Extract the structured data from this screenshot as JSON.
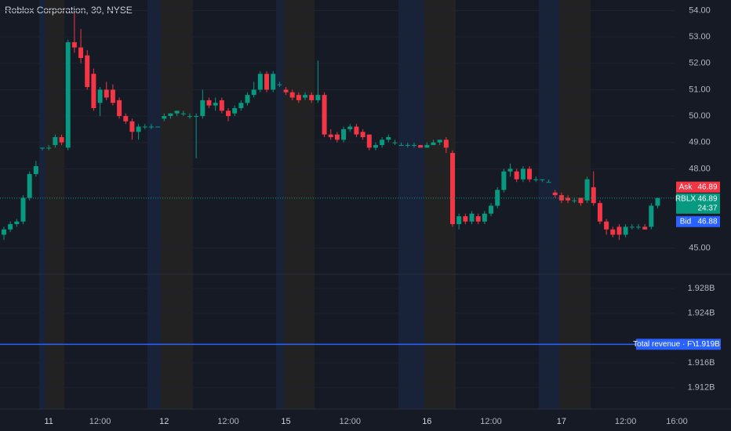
{
  "chart_data": {
    "type": "candlestick",
    "title": "Roblox Corporation, 30, NYSE",
    "up_color": "#089981",
    "down_color": "#f23645",
    "categories": [
      null,
      null,
      null,
      null,
      null,
      null,
      null,
      "11",
      null,
      null,
      null,
      null,
      null,
      null,
      null,
      "12:00",
      null,
      null,
      null,
      null,
      null,
      null,
      null,
      null,
      null,
      "12",
      null,
      null,
      null,
      null,
      null,
      null,
      null,
      null,
      null,
      "12:00",
      null,
      null,
      null,
      null,
      null,
      null,
      null,
      null,
      "15",
      null,
      null,
      null,
      null,
      null,
      null,
      null,
      null,
      null,
      "12:00",
      null,
      null,
      null,
      null,
      null,
      null,
      null,
      null,
      null,
      null,
      null,
      "16",
      null,
      null,
      null,
      null,
      null,
      null,
      null,
      null,
      null,
      "12:00",
      null,
      null,
      null,
      null,
      null,
      null,
      null,
      null,
      null,
      null,
      "17",
      null,
      null,
      null,
      null,
      null,
      null,
      null,
      null,
      null,
      "12:00",
      null,
      null,
      null,
      null,
      null,
      null,
      null,
      "16:00"
    ],
    "values": [
      [
        45.5,
        45.8,
        45.3,
        45.7
      ],
      [
        45.7,
        46.0,
        45.6,
        45.9
      ],
      [
        45.9,
        46.1,
        45.8,
        46.0
      ],
      [
        46.0,
        47.0,
        45.9,
        46.9
      ],
      [
        46.9,
        47.9,
        46.8,
        47.8
      ],
      [
        47.8,
        48.3,
        47.7,
        48.1
      ],
      [
        48.8,
        48.8,
        48.7,
        48.8
      ],
      [
        48.8,
        48.9,
        48.7,
        48.8
      ],
      [
        48.9,
        49.3,
        48.8,
        49.2
      ],
      [
        49.2,
        49.3,
        48.9,
        49.0
      ],
      [
        48.8,
        52.9,
        48.7,
        52.8
      ],
      [
        52.8,
        53.9,
        52.4,
        52.6
      ],
      [
        52.6,
        53.3,
        52.0,
        52.2
      ],
      [
        52.3,
        52.5,
        51.0,
        51.1
      ],
      [
        51.6,
        51.8,
        50.2,
        50.3
      ],
      [
        50.5,
        51.1,
        50.0,
        51.0
      ],
      [
        51.0,
        51.3,
        50.6,
        50.7
      ],
      [
        51.0,
        51.2,
        50.4,
        50.5
      ],
      [
        50.6,
        50.7,
        49.9,
        50.0
      ],
      [
        50.0,
        50.1,
        49.7,
        49.8
      ],
      [
        49.8,
        49.9,
        49.1,
        49.4
      ],
      [
        49.4,
        49.7,
        49.1,
        49.6
      ],
      [
        49.6,
        49.7,
        49.5,
        49.6
      ],
      [
        49.6,
        49.7,
        49.5,
        49.6
      ],
      [
        49.6,
        49.6,
        49.6,
        49.6
      ],
      [
        49.9,
        50.1,
        49.8,
        50.0
      ],
      [
        50.0,
        50.1,
        49.9,
        50.1
      ],
      [
        50.1,
        50.2,
        50.0,
        50.2
      ],
      [
        50.1,
        50.2,
        50.0,
        50.1
      ],
      [
        50.0,
        50.1,
        49.9,
        50.0
      ],
      [
        50.0,
        50.1,
        48.4,
        50.0
      ],
      [
        50.0,
        51.0,
        49.9,
        50.6
      ],
      [
        50.6,
        50.7,
        50.3,
        50.4
      ],
      [
        50.4,
        50.7,
        50.2,
        50.5
      ],
      [
        50.6,
        50.7,
        50.1,
        50.2
      ],
      [
        50.2,
        50.3,
        49.8,
        50.0
      ],
      [
        50.1,
        50.4,
        50.0,
        50.3
      ],
      [
        50.3,
        50.6,
        50.2,
        50.5
      ],
      [
        50.5,
        50.9,
        50.4,
        50.8
      ],
      [
        50.8,
        51.3,
        50.7,
        51.0
      ],
      [
        51.0,
        51.7,
        50.9,
        51.6
      ],
      [
        51.6,
        51.7,
        50.9,
        51.0
      ],
      [
        51.0,
        51.7,
        50.9,
        51.6
      ],
      [
        51.2,
        51.3,
        51.1,
        51.2
      ],
      [
        51.0,
        51.1,
        50.8,
        50.9
      ],
      [
        50.9,
        51.0,
        50.6,
        50.7
      ],
      [
        50.8,
        50.9,
        50.5,
        50.6
      ],
      [
        50.7,
        50.9,
        50.6,
        50.8
      ],
      [
        50.8,
        50.9,
        50.5,
        50.6
      ],
      [
        50.6,
        52.1,
        50.5,
        50.8
      ],
      [
        50.8,
        50.9,
        49.2,
        49.3
      ],
      [
        49.3,
        49.5,
        49.1,
        49.2
      ],
      [
        49.3,
        49.4,
        49.0,
        49.1
      ],
      [
        49.1,
        49.6,
        49.0,
        49.5
      ],
      [
        49.5,
        49.7,
        49.4,
        49.6
      ],
      [
        49.6,
        49.7,
        49.2,
        49.3
      ],
      [
        49.4,
        49.5,
        49.1,
        49.2
      ],
      [
        49.3,
        49.3,
        48.7,
        48.8
      ],
      [
        48.8,
        49.0,
        48.7,
        48.9
      ],
      [
        48.9,
        49.2,
        48.8,
        49.1
      ],
      [
        49.1,
        49.3,
        49.0,
        49.2
      ],
      [
        49.0,
        49.1,
        48.9,
        49.0
      ],
      [
        48.9,
        49.0,
        48.9,
        48.9
      ],
      [
        48.9,
        49.0,
        48.8,
        48.9
      ],
      [
        48.9,
        49.0,
        48.8,
        48.9
      ],
      [
        48.9,
        48.9,
        48.8,
        48.8
      ],
      [
        48.8,
        49.0,
        48.8,
        48.9
      ],
      [
        48.9,
        49.1,
        48.9,
        49.0
      ],
      [
        49.0,
        49.1,
        48.9,
        49.1
      ],
      [
        49.1,
        49.2,
        48.6,
        48.8
      ],
      [
        48.6,
        48.7,
        45.8,
        45.9
      ],
      [
        45.9,
        46.3,
        45.7,
        46.2
      ],
      [
        46.2,
        46.3,
        45.9,
        46.0
      ],
      [
        46.0,
        46.4,
        45.9,
        46.3
      ],
      [
        46.2,
        46.3,
        45.9,
        46.0
      ],
      [
        46.0,
        46.4,
        45.9,
        46.3
      ],
      [
        46.3,
        46.7,
        46.2,
        46.6
      ],
      [
        46.6,
        47.3,
        46.5,
        47.2
      ],
      [
        47.2,
        48.0,
        47.1,
        47.9
      ],
      [
        47.9,
        48.2,
        47.7,
        48.0
      ],
      [
        47.9,
        48.0,
        47.5,
        47.6
      ],
      [
        47.6,
        48.1,
        47.5,
        48.0
      ],
      [
        48.0,
        48.1,
        47.5,
        47.6
      ],
      [
        47.6,
        47.7,
        47.5,
        47.6
      ],
      [
        47.6,
        47.6,
        47.5,
        47.6
      ],
      [
        47.5,
        47.6,
        47.5,
        47.5
      ],
      [
        47.1,
        47.2,
        46.9,
        47.0
      ],
      [
        47.0,
        47.1,
        46.7,
        46.8
      ],
      [
        46.9,
        47.0,
        46.7,
        46.8
      ],
      [
        46.8,
        46.9,
        46.7,
        46.8
      ],
      [
        46.9,
        46.9,
        46.6,
        46.7
      ],
      [
        46.8,
        47.7,
        46.7,
        47.6
      ],
      [
        47.3,
        47.9,
        46.6,
        46.7
      ],
      [
        46.7,
        46.8,
        45.9,
        46.0
      ],
      [
        46.0,
        46.1,
        45.5,
        45.7
      ],
      [
        45.7,
        45.8,
        45.4,
        45.5
      ],
      [
        45.8,
        45.9,
        45.3,
        45.5
      ],
      [
        45.5,
        45.9,
        45.4,
        45.8
      ],
      [
        45.8,
        45.9,
        45.7,
        45.8
      ],
      [
        45.8,
        45.9,
        45.7,
        45.8
      ],
      [
        45.8,
        45.9,
        45.7,
        45.7
      ],
      [
        45.8,
        46.7,
        45.7,
        46.6
      ],
      [
        46.6,
        46.9,
        46.5,
        46.89
      ],
      null,
      null,
      null
    ],
    "ylim": [
      44.0,
      54.4
    ],
    "yticks": [
      {
        "value": 54,
        "label": "54.00"
      },
      {
        "value": 53,
        "label": "53.00"
      },
      {
        "value": 52,
        "label": "52.00"
      },
      {
        "value": 51,
        "label": "51.00"
      },
      {
        "value": 50,
        "label": "50.00"
      },
      {
        "value": 49,
        "label": "49.00"
      },
      {
        "value": 48,
        "label": "48.00"
      },
      {
        "value": 45,
        "label": "45.00"
      }
    ],
    "quote": {
      "ask": {
        "label": "Ask",
        "value": 46.89,
        "color": "#f23645"
      },
      "last": {
        "label": "RBLX",
        "value": 46.89,
        "countdown": "24:37",
        "color": "#089981"
      },
      "bid": {
        "label": "Bid",
        "value": 46.88,
        "color": "#2962ff"
      }
    },
    "indicator": {
      "name": "Total revenue · FY",
      "value": 1.919,
      "value_label": "1.919B",
      "color": "#2962ff",
      "ylim": [
        1.9088,
        1.9303
      ],
      "yticks": [
        {
          "value": 1.928,
          "label": "1.928B"
        },
        {
          "value": 1.924,
          "label": "1.924B"
        },
        {
          "value": 1.916,
          "label": "1.916B"
        },
        {
          "value": 1.912,
          "label": "1.912B"
        }
      ]
    }
  }
}
